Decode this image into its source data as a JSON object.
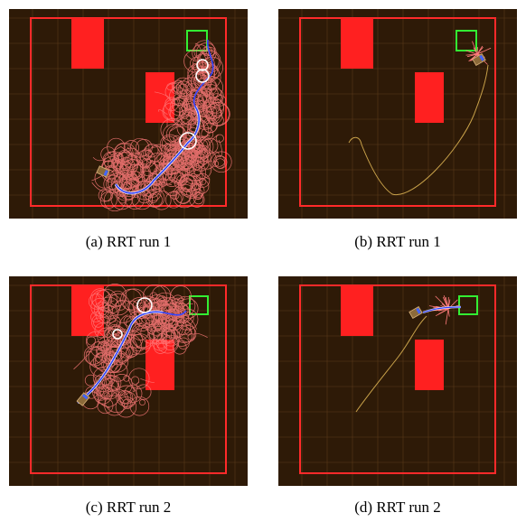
{
  "panels": [
    {
      "id": "a",
      "caption": "(a) RRT run 1",
      "variant": "tree",
      "run": 1
    },
    {
      "id": "b",
      "caption": "(b) RRT run 1",
      "variant": "trace",
      "run": 1
    },
    {
      "id": "c",
      "caption": "(c) RRT run 2",
      "variant": "tree",
      "run": 2
    },
    {
      "id": "d",
      "caption": "(d) RRT run 2",
      "variant": "trace",
      "run": 2
    }
  ],
  "colors": {
    "background": "#2e1a07",
    "grid": "#5a3a1c",
    "boundary": "#ff2a2a",
    "obstacle": "#ff2020",
    "goal": "#33ee33",
    "tree": "#ff7b7b",
    "path": "#3344ff",
    "path_glow": "#ffffff",
    "trace": "#c9a24a"
  }
}
